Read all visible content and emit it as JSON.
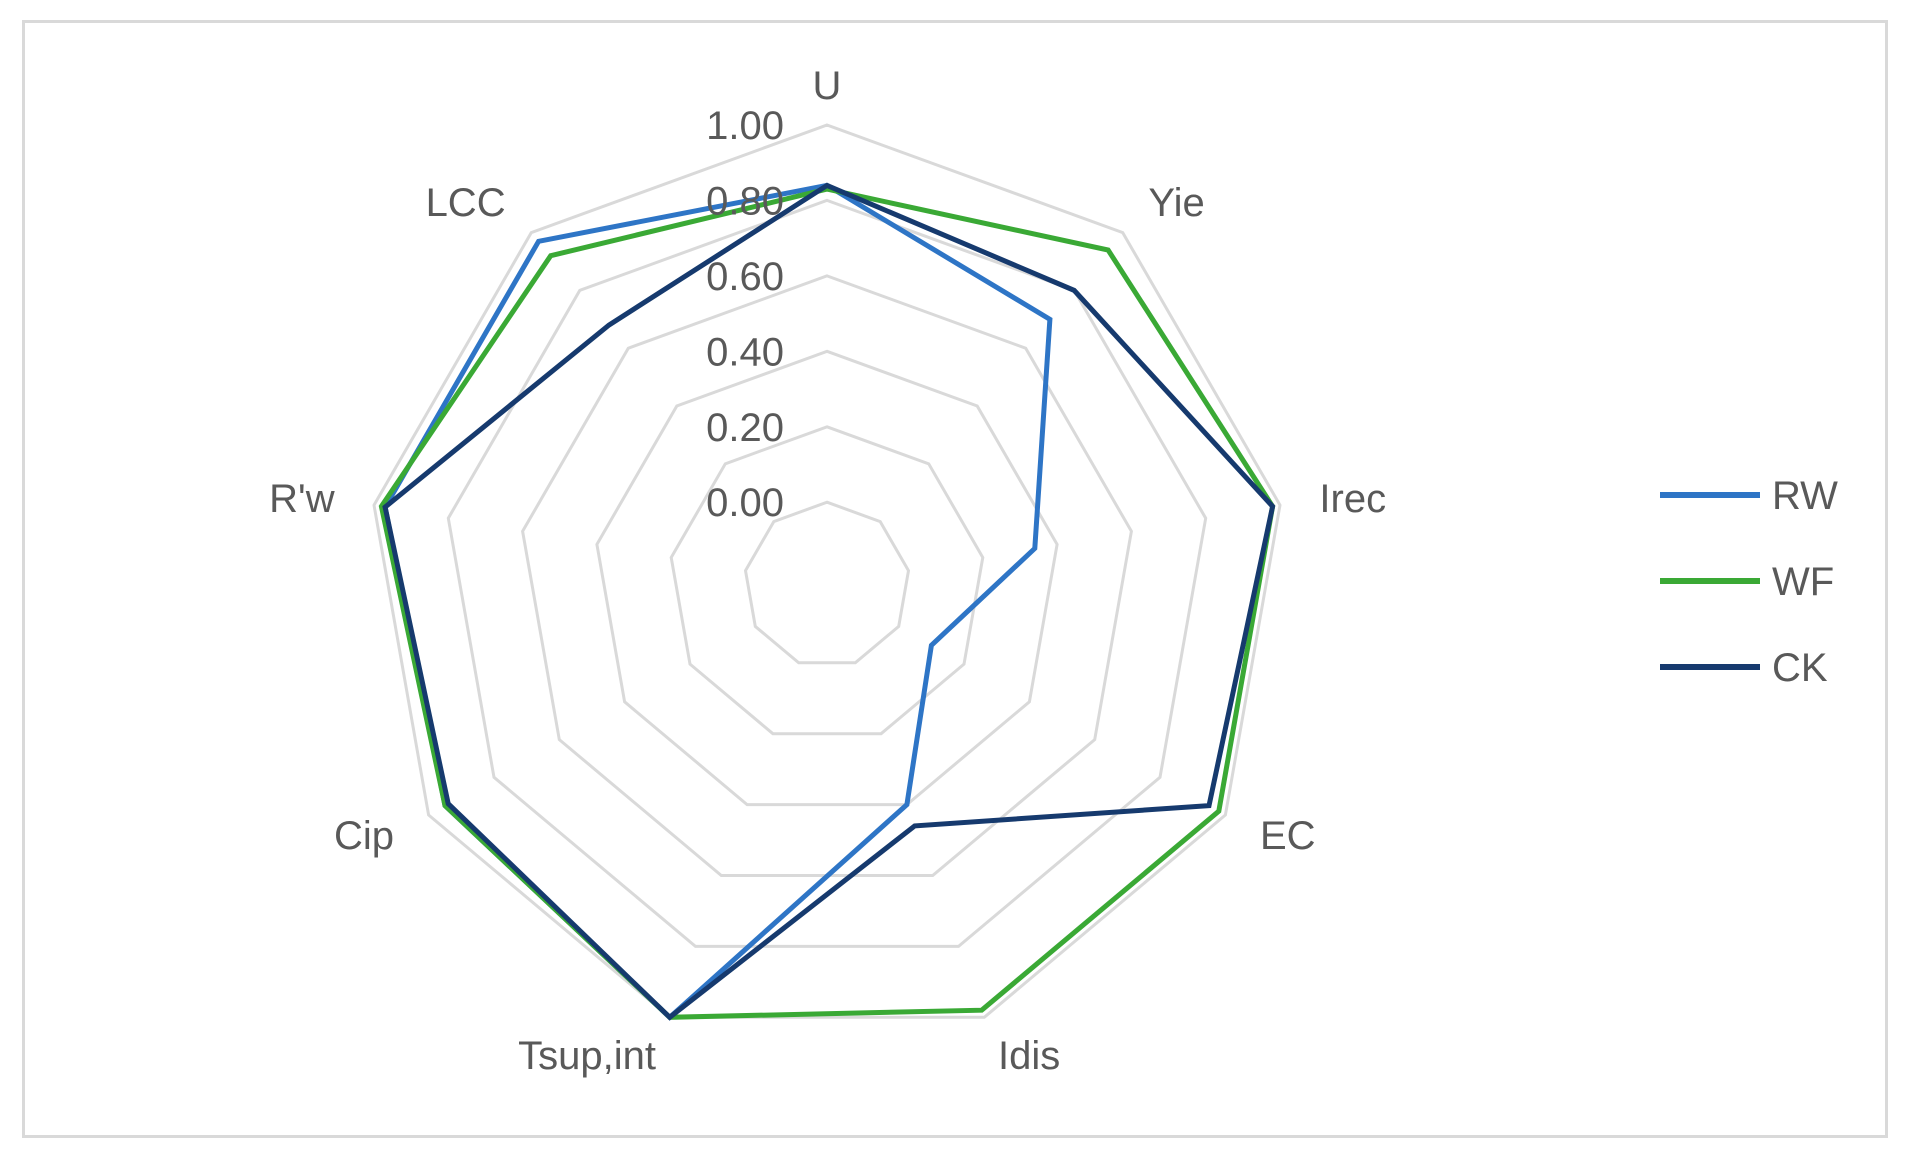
{
  "chart_data": {
    "type": "radar",
    "title": "",
    "axes": [
      "U",
      "Yie",
      "Irec",
      "EC",
      "Idis",
      "Tsup,int",
      "Cip",
      "R'w",
      "LCC"
    ],
    "rlim": [
      0,
      1.0
    ],
    "ticks": [
      "0.00",
      "0.20",
      "0.40",
      "0.60",
      "0.80",
      "1.00"
    ],
    "tick_values": [
      0,
      0.2,
      0.4,
      0.6,
      0.8,
      1.0
    ],
    "grid": true,
    "grid_color": "#d9d9d9",
    "legend_position": "right",
    "series": [
      {
        "name": "RW",
        "color": "#2e75c6",
        "values": [
          0.84,
          0.7,
          0.34,
          0.1,
          0.4,
          1.0,
          0.95,
          0.97,
          0.97
        ]
      },
      {
        "name": "WF",
        "color": "#3aa935",
        "values": [
          0.83,
          0.94,
          0.98,
          0.98,
          0.98,
          1.0,
          0.95,
          0.98,
          0.92
        ]
      },
      {
        "name": "CK",
        "color": "#163a6e",
        "values": [
          0.84,
          0.8,
          0.98,
          0.95,
          0.46,
          1.0,
          0.94,
          0.97,
          0.68
        ]
      }
    ]
  }
}
